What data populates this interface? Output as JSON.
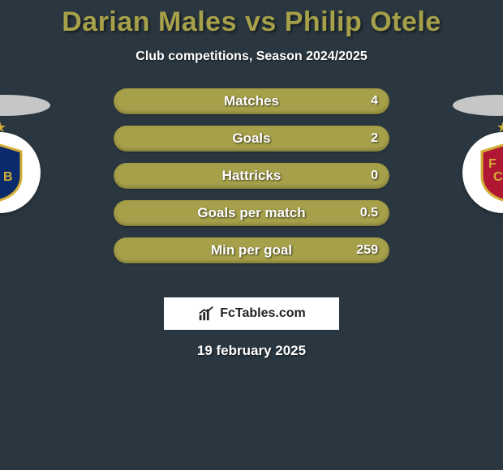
{
  "title_color": "#a6a04a",
  "background_color": "#2a3740",
  "title": "Darian Males vs Philip Otele",
  "subtitle": "Club competitions, Season 2024/2025",
  "bars": [
    {
      "label": "Matches",
      "value": "4",
      "fill_pct": 100,
      "color": "#a6a04a"
    },
    {
      "label": "Goals",
      "value": "2",
      "fill_pct": 100,
      "color": "#a6a04a"
    },
    {
      "label": "Hattricks",
      "value": "0",
      "fill_pct": 100,
      "color": "#a6a04a"
    },
    {
      "label": "Goals per match",
      "value": "0.5",
      "fill_pct": 100,
      "color": "#a6a04a"
    },
    {
      "label": "Min per goal",
      "value": "259",
      "fill_pct": 100,
      "color": "#a6a04a"
    }
  ],
  "brand": "FcTables.com",
  "date": "19 february 2025",
  "badge": {
    "left": {
      "name": "fc-basel",
      "shield_fill_top": "#b01733",
      "shield_fill_bottom": "#0a2a6b",
      "stroke": "#d4af37"
    },
    "right": {
      "name": "fc-basel",
      "shield_fill_top": "#b01733",
      "shield_fill_bottom": "#0a2a6b",
      "stroke": "#d4af37"
    }
  }
}
